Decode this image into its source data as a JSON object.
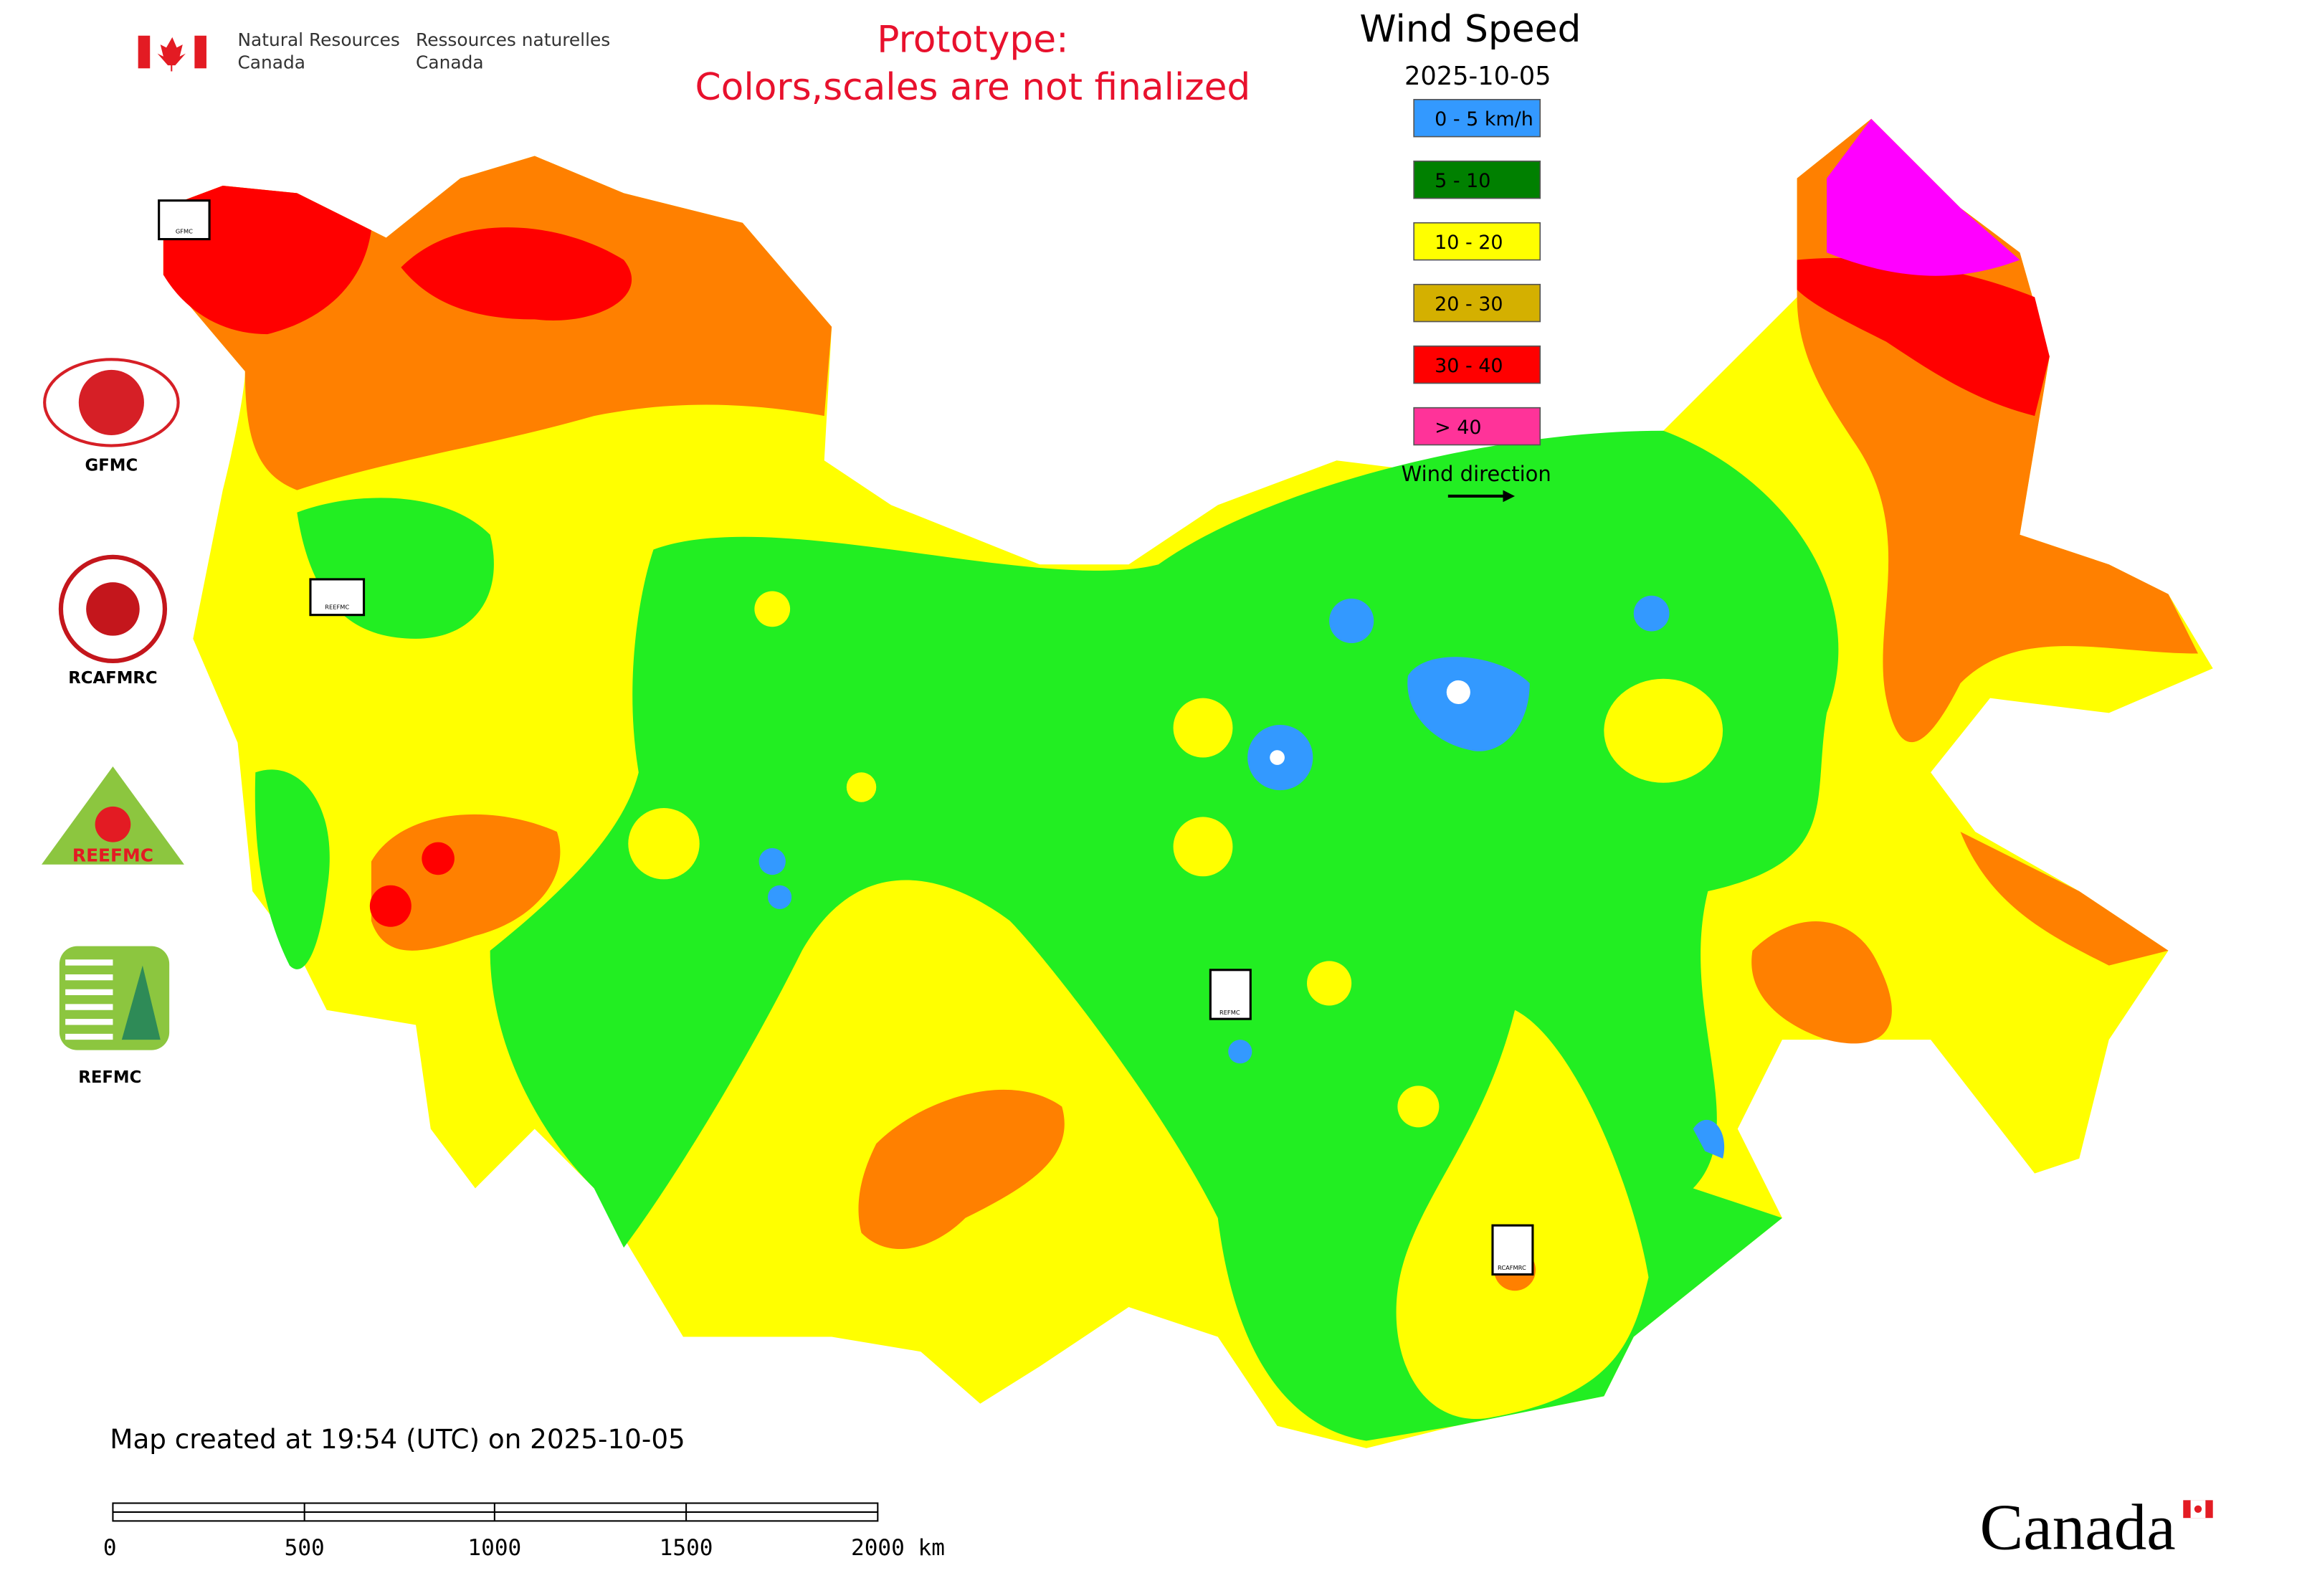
{
  "header": {
    "agency_en": [
      "Natural Resources",
      "Canada"
    ],
    "agency_fr": [
      "Ressources naturelles",
      "Canada"
    ]
  },
  "notice": [
    "Prototype:",
    "Colors,scales are not finalized"
  ],
  "title": "Wind Speed",
  "date": "2025-10-05",
  "legend": [
    {
      "label": "0 - 5 km/h",
      "color": "#3399ff"
    },
    {
      "label": "5 - 10",
      "color": "#008000"
    },
    {
      "label": "10 - 20",
      "color": "#ffff00"
    },
    {
      "label": "20 - 30",
      "color": "#d4b000"
    },
    {
      "label": "30 - 40",
      "color": "#ff0000"
    },
    {
      "label": "> 40",
      "color": "#ff3399"
    }
  ],
  "wind_direction_label": "Wind direction",
  "logos": [
    "GFMC",
    "RCAFMRC",
    "REEFMC",
    "REFMC"
  ],
  "footer": "Map created at 19:54 (UTC) on 2025-10-05",
  "scale_bar": [
    "0",
    "500",
    "1000",
    "1500",
    "2000 km"
  ],
  "wordmark": "Canada"
}
